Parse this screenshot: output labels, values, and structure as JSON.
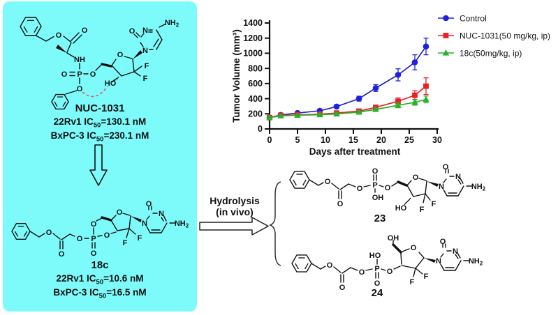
{
  "figure": {
    "panel_color": "#7DFBFB",
    "bond_color": "#111111",
    "dashed_arc_color": "#E45552"
  },
  "structures": {
    "nuc1031": {
      "name": "NUC-1031",
      "atom_labels": [
        "O",
        "O",
        "NH",
        "O",
        "P",
        "O",
        "O",
        "HO",
        "F",
        "F",
        "O",
        "N",
        "O",
        "N",
        "NH2"
      ],
      "ic50": [
        {
          "pre": "22Rv1 IC",
          "sub": "50",
          "post": "=130.1 nM"
        },
        {
          "pre": "BxPC-3 IC",
          "sub": "50",
          "post": "=230.1 nM"
        }
      ]
    },
    "c18": {
      "name": "18c",
      "atom_labels": [
        "O",
        "O",
        "O",
        "P",
        "O",
        "O",
        "O",
        "O",
        "F",
        "F",
        "N",
        "O",
        "N",
        "NH2"
      ],
      "ic50": [
        {
          "pre": "22Rv1 IC",
          "sub": "50",
          "post": "=10.6 nM"
        },
        {
          "pre": "BxPC-3 IC",
          "sub": "50",
          "post": "=16.5 nM"
        }
      ]
    },
    "m23": {
      "name": "23",
      "atom_labels": [
        "O",
        "O",
        "O",
        "P",
        "O",
        "OH",
        "O",
        "O",
        "HO",
        "F",
        "F",
        "N",
        "O",
        "N",
        "NH2"
      ]
    },
    "m24": {
      "name": "24",
      "atom_labels": [
        "O",
        "O",
        "O",
        "P",
        "HO",
        "O",
        "O",
        "OH",
        "O",
        "F",
        "F",
        "N",
        "O",
        "N",
        "NH2"
      ]
    }
  },
  "arrows": {
    "hydrolysis_line1": "Hydrolysis",
    "hydrolysis_line2": "(in vivo)"
  },
  "chart_data": {
    "type": "line",
    "title": "",
    "xlabel": "Days after treatment",
    "ylabel": "Tumor Volume (mm³)",
    "x": [
      0,
      2,
      5,
      9,
      12,
      16,
      19,
      23,
      26,
      28
    ],
    "series": [
      {
        "name": "Control",
        "color": "#2020DE",
        "marker": "circle",
        "values": [
          150,
          185,
          210,
          240,
          295,
          400,
          540,
          715,
          880,
          1090
        ],
        "errors": [
          12,
          14,
          16,
          20,
          25,
          32,
          45,
          80,
          100,
          110
        ]
      },
      {
        "name": "NUC-1031(50 mg/kg, ip)",
        "color": "#EE1E25",
        "marker": "square",
        "values": [
          150,
          180,
          185,
          195,
          210,
          235,
          285,
          365,
          445,
          565
        ],
        "errors": [
          10,
          10,
          12,
          14,
          16,
          20,
          28,
          45,
          60,
          110
        ]
      },
      {
        "name": "18c(50mg/kg, ip)",
        "color": "#29B129",
        "marker": "triangle",
        "values": [
          150,
          172,
          180,
          188,
          198,
          222,
          258,
          312,
          352,
          390
        ],
        "errors": [
          8,
          9,
          10,
          12,
          14,
          16,
          20,
          32,
          38,
          45
        ]
      }
    ],
    "xlim": [
      0,
      30
    ],
    "ylim": [
      0,
      1400
    ],
    "xticks": [
      0,
      5,
      10,
      15,
      20,
      25,
      30
    ],
    "yticks": [
      0,
      200,
      400,
      600,
      800,
      1000,
      1200,
      1400
    ],
    "grid": false,
    "legend_position": "right-top"
  }
}
